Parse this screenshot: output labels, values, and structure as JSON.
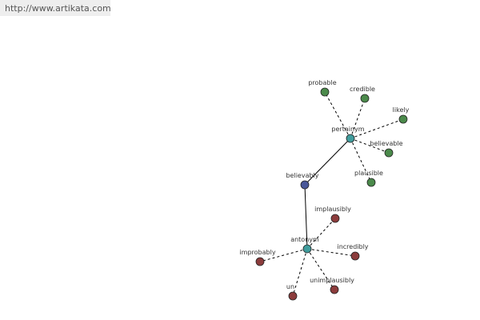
{
  "header": {
    "url": "http://www.artikata.com"
  },
  "nodes": [
    {
      "label": "believably"
    },
    {
      "label": "pertainym"
    },
    {
      "label": "antonym"
    },
    {
      "label": "probable"
    },
    {
      "label": "credible"
    },
    {
      "label": "likely"
    },
    {
      "label": "believable"
    },
    {
      "label": "plausible"
    },
    {
      "label": "implausibly"
    },
    {
      "label": "incredibly"
    },
    {
      "label": "unimplausibly"
    },
    {
      "label": "un"
    },
    {
      "label": "improbably"
    }
  ]
}
